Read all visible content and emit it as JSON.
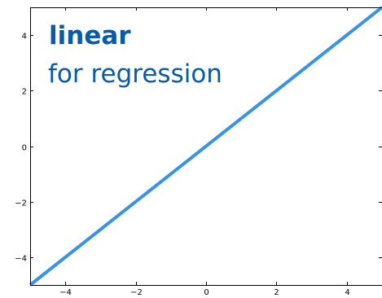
{
  "chart_data": {
    "type": "line",
    "title": "linear",
    "subtitle": "for regression",
    "xlim": [
      -5,
      5
    ],
    "ylim": [
      -5,
      5
    ],
    "x_ticks": [
      -4,
      -2,
      0,
      2,
      4
    ],
    "y_ticks": [
      -4,
      -2,
      0,
      2,
      4
    ],
    "x_tick_labels": [
      "−4",
      "−2",
      "0",
      "2",
      "4"
    ],
    "y_tick_labels": [
      "−4",
      "−2",
      "0",
      "2",
      "4"
    ],
    "grid": false,
    "series": [
      {
        "x": [
          -5,
          5
        ],
        "y": [
          -5,
          5
        ]
      }
    ],
    "colors": {
      "line": "#3793ea",
      "title": "#0b5aa6",
      "axis": "#000000"
    }
  }
}
